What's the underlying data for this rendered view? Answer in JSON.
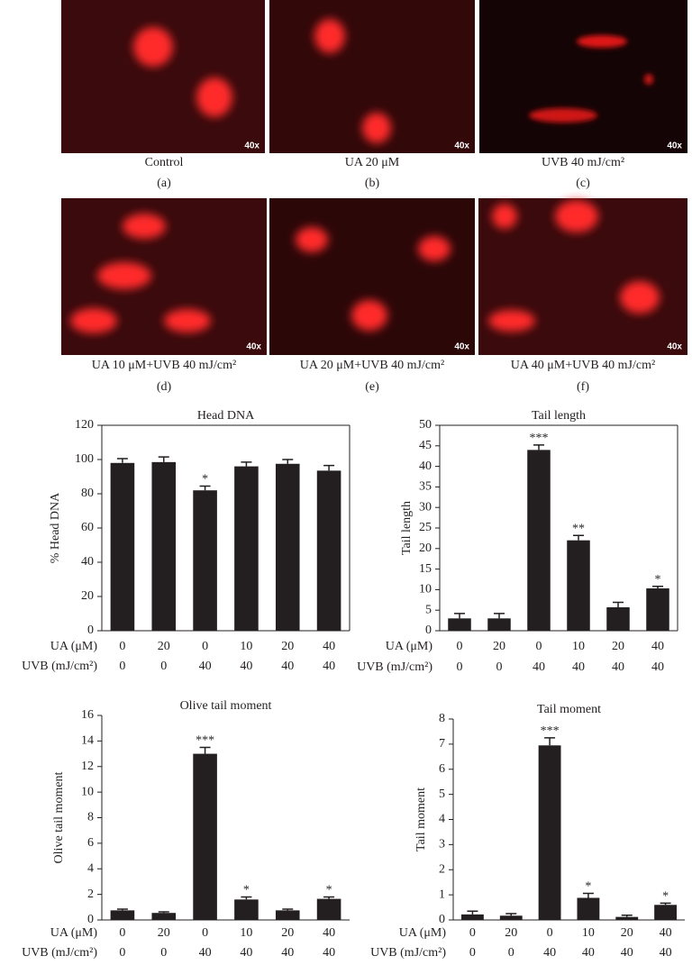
{
  "panels": [
    {
      "caption": "Control",
      "letter": "(a)",
      "magnification": "40x"
    },
    {
      "caption": "UA 20 μM",
      "letter": "(b)",
      "magnification": "40x"
    },
    {
      "caption": "UVB 40 mJ/cm²",
      "letter": "(c)",
      "magnification": "40x"
    },
    {
      "caption": "UA 10 μM+UVB 40 mJ/cm²",
      "letter": "(d)",
      "magnification": "40x"
    },
    {
      "caption": "UA 20 μM+UVB 40 mJ/cm²",
      "letter": "(e)",
      "magnification": "40x"
    },
    {
      "caption": "UA 40 μM+UVB 40 mJ/cm²",
      "letter": "(f)",
      "magnification": "40x"
    }
  ],
  "chart_data": [
    {
      "type": "bar",
      "title": "Head DNA",
      "y_label": "% Head DNA",
      "color": "#231f20",
      "frame": true,
      "category_rows": [
        {
          "name": "UA (μM)",
          "labels": [
            "0",
            "20",
            "0",
            "10",
            "20",
            "40"
          ]
        },
        {
          "name": "UVB (mJ/cm²)",
          "labels": [
            "0",
            "0",
            "40",
            "40",
            "40",
            "40"
          ]
        }
      ],
      "values": [
        98,
        98.5,
        82,
        96,
        97.5,
        93.5
      ],
      "errors": [
        2.5,
        3,
        2.5,
        2.5,
        2.5,
        3
      ],
      "annotations": [
        null,
        null,
        "*",
        null,
        null,
        null
      ],
      "ylim": [
        0,
        120
      ],
      "yticks": [
        0,
        20,
        40,
        60,
        80,
        100,
        120
      ]
    },
    {
      "type": "bar",
      "title": "Tail length",
      "y_label": "Tail length",
      "color": "#231f20",
      "frame": true,
      "category_rows": [
        {
          "name": "UA (μM)",
          "labels": [
            "0",
            "20",
            "0",
            "10",
            "20",
            "40"
          ]
        },
        {
          "name": "UVB (mJ/cm²)",
          "labels": [
            "0",
            "0",
            "40",
            "40",
            "40",
            "40"
          ]
        }
      ],
      "values": [
        3,
        3,
        44,
        22,
        5.7,
        10.3
      ],
      "errors": [
        1.2,
        1.2,
        1.2,
        1.2,
        1.2,
        0.5
      ],
      "annotations": [
        null,
        null,
        "***",
        "**",
        null,
        "*"
      ],
      "ylim": [
        0,
        50
      ],
      "yticks": [
        0,
        5,
        10,
        15,
        20,
        25,
        30,
        35,
        40,
        45,
        50
      ]
    },
    {
      "type": "bar",
      "title": "Olive tail moment",
      "y_label": "Olive tail moment",
      "color": "#231f20",
      "frame": false,
      "category_rows": [
        {
          "name": "UA (μM)",
          "labels": [
            "0",
            "20",
            "0",
            "10",
            "20",
            "40"
          ]
        },
        {
          "name": "UVB (mJ/cm²)",
          "labels": [
            "0",
            "0",
            "40",
            "40",
            "40",
            "40"
          ]
        }
      ],
      "values": [
        0.75,
        0.55,
        13,
        1.6,
        0.75,
        1.65
      ],
      "errors": [
        0.1,
        0.08,
        0.5,
        0.2,
        0.1,
        0.15
      ],
      "annotations": [
        null,
        null,
        "***",
        "*",
        null,
        "*"
      ],
      "ylim": [
        0,
        16
      ],
      "yticks": [
        0,
        2,
        4,
        6,
        8,
        10,
        12,
        14,
        16
      ]
    },
    {
      "type": "bar",
      "title": "Tail moment",
      "y_label": "Tail moment",
      "color": "#231f20",
      "frame": false,
      "category_rows": [
        {
          "name": "UA (μM)",
          "labels": [
            "0",
            "20",
            "0",
            "10",
            "20",
            "40"
          ]
        },
        {
          "name": "UVB (mJ/cm²)",
          "labels": [
            "0",
            "0",
            "40",
            "40",
            "40",
            "40"
          ]
        }
      ],
      "values": [
        0.22,
        0.17,
        6.95,
        0.88,
        0.12,
        0.6
      ],
      "errors": [
        0.13,
        0.08,
        0.3,
        0.18,
        0.07,
        0.07
      ],
      "annotations": [
        null,
        null,
        "***",
        "*",
        null,
        "*"
      ],
      "ylim": [
        0,
        8
      ],
      "yticks": [
        0,
        1,
        2,
        3,
        4,
        5,
        6,
        7,
        8
      ]
    }
  ]
}
